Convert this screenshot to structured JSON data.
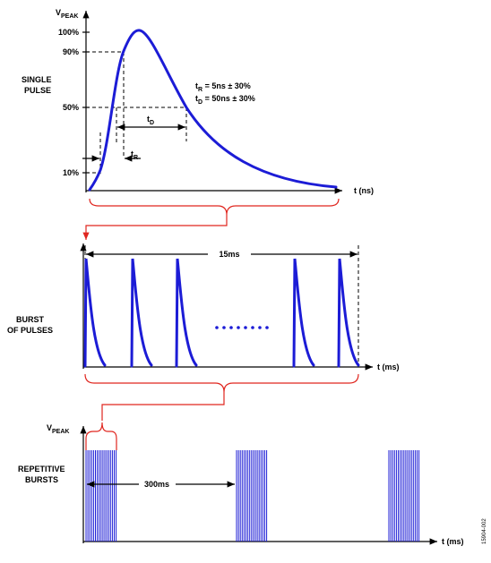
{
  "single_pulse": {
    "y_label": {
      "main": "V",
      "sub": "PEAK"
    },
    "levels": [
      "100%",
      "90%",
      "50%",
      "10%"
    ],
    "label": [
      "SINGLE",
      "PULSE"
    ],
    "rise_spec": {
      "main": "t",
      "sub": "R",
      "rest": " = 5ns ± 30%"
    },
    "decay_spec": {
      "main": "t",
      "sub": "D",
      "rest": " = 50ns ± 30%"
    },
    "decay_marker": {
      "main": "t",
      "sub": "D"
    },
    "rise_marker": {
      "main": "t",
      "sub": "R"
    },
    "x_label": "t (ns)"
  },
  "burst": {
    "label": [
      "BURST",
      "OF PULSES"
    ],
    "period": "15ms",
    "x_label": "t (ms)"
  },
  "repetitive": {
    "y_label": {
      "main": "V",
      "sub": "PEAK"
    },
    "label": [
      "REPETITIVE",
      "BURSTS"
    ],
    "period": "300ms",
    "x_label": "t (ms)"
  },
  "figure_id": "15904-002"
}
